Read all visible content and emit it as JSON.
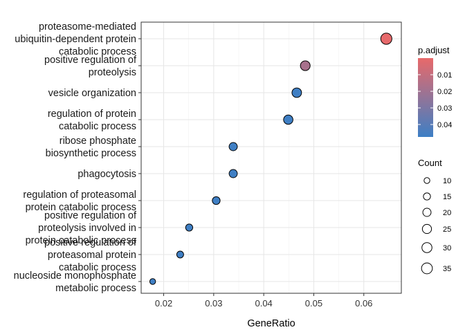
{
  "chart_data": {
    "type": "scatter",
    "title": "",
    "xlabel": "GeneRatio",
    "ylabel": "",
    "xlim": [
      0.0155,
      0.0675
    ],
    "x_ticks": [
      0.02,
      0.03,
      0.04,
      0.05,
      0.06
    ],
    "x_tick_labels": [
      "0.02",
      "0.03",
      "0.04",
      "0.05",
      "0.06"
    ],
    "grid": true,
    "categories": [
      {
        "lines": [
          "proteasome-mediated",
          "ubiquitin-dependent protein",
          "catabolic process"
        ]
      },
      {
        "lines": [
          "positive regulation of",
          "proteolysis"
        ]
      },
      {
        "lines": [
          "vesicle organization"
        ]
      },
      {
        "lines": [
          "regulation of protein",
          "catabolic process"
        ]
      },
      {
        "lines": [
          "ribose phosphate",
          "biosynthetic process"
        ]
      },
      {
        "lines": [
          "phagocytosis"
        ]
      },
      {
        "lines": [
          "regulation of proteasomal",
          "protein catabolic process"
        ]
      },
      {
        "lines": [
          "positive regulation of",
          "proteolysis involved in",
          "protein catabolic process"
        ]
      },
      {
        "lines": [
          "positive regulation of",
          "proteasomal protein",
          "catabolic process"
        ]
      },
      {
        "lines": [
          "nucleoside monophosphate",
          "metabolic process"
        ]
      }
    ],
    "points": [
      {
        "x": 0.0645,
        "count": 37,
        "p_adjust": 0.0005
      },
      {
        "x": 0.0483,
        "count": 28,
        "p_adjust": 0.018
      },
      {
        "x": 0.0466,
        "count": 27,
        "p_adjust": 0.047
      },
      {
        "x": 0.0449,
        "count": 26,
        "p_adjust": 0.047
      },
      {
        "x": 0.0339,
        "count": 20,
        "p_adjust": 0.047
      },
      {
        "x": 0.0339,
        "count": 20,
        "p_adjust": 0.047
      },
      {
        "x": 0.0305,
        "count": 18,
        "p_adjust": 0.047
      },
      {
        "x": 0.0251,
        "count": 15,
        "p_adjust": 0.047
      },
      {
        "x": 0.0233,
        "count": 14,
        "p_adjust": 0.047
      },
      {
        "x": 0.0178,
        "count": 10,
        "p_adjust": 0.047
      }
    ],
    "legend_color": {
      "title": "p.adjust",
      "range": [
        0.0,
        0.0475
      ],
      "ticks": [
        0.01,
        0.02,
        0.03,
        0.04
      ],
      "tick_labels": [
        "0.01",
        "0.02",
        "0.03",
        "0.04"
      ],
      "low_color": "#e8696a",
      "high_color": "#3d7fc5",
      "position": "right"
    },
    "legend_size": {
      "title": "Count",
      "values": [
        10,
        15,
        20,
        25,
        30,
        35
      ],
      "labels": [
        "10",
        "15",
        "20",
        "25",
        "30",
        "35"
      ],
      "position": "right"
    }
  }
}
